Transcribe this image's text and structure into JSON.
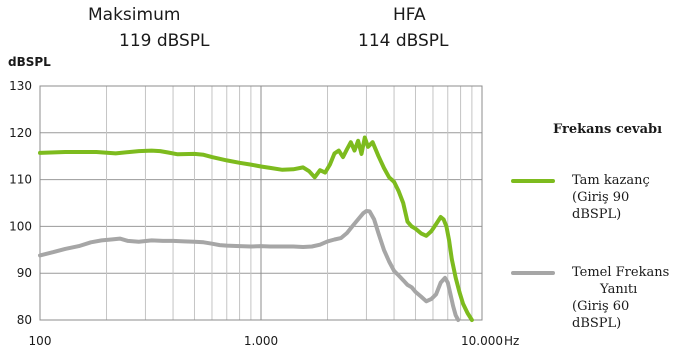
{
  "header": {
    "max_label": "Maksimum",
    "max_value": "119 dBSPL",
    "hfa_label": "HFA",
    "hfa_value": "114 dBSPL"
  },
  "chart_data": {
    "type": "line",
    "ylabel": "dBSPL",
    "xunit": "Hz",
    "xscale": "log",
    "xlim": [
      100,
      10000
    ],
    "ylim": [
      80,
      130
    ],
    "yticks": [
      80,
      90,
      100,
      110,
      120,
      130
    ],
    "xtick_labels": [
      {
        "x": 100,
        "label": "100"
      },
      {
        "x": 1000,
        "label": "1.000"
      },
      {
        "x": 10000,
        "label": "10.000"
      }
    ],
    "grid": true,
    "legend": {
      "title": "Frekans cevabı",
      "placement": "right"
    },
    "series": [
      {
        "name": "Tam kazanç (Giriş 90 dBSPL)",
        "color": "#7dbb1e",
        "x": [
          100,
          130,
          180,
          220,
          280,
          320,
          350,
          380,
          420,
          500,
          550,
          600,
          700,
          800,
          900,
          1000,
          1100,
          1250,
          1400,
          1550,
          1650,
          1750,
          1850,
          1950,
          2050,
          2150,
          2250,
          2350,
          2450,
          2550,
          2650,
          2750,
          2850,
          2950,
          3050,
          3200,
          3400,
          3600,
          3800,
          4000,
          4200,
          4400,
          4600,
          4800,
          5000,
          5300,
          5600,
          5900,
          6200,
          6500,
          6700,
          6900,
          7100,
          7300,
          7600,
          7900,
          8200,
          8600,
          9000
        ],
        "y": [
          115.7,
          115.9,
          115.9,
          115.6,
          116.1,
          116.2,
          116.1,
          115.8,
          115.4,
          115.5,
          115.3,
          114.8,
          114.1,
          113.6,
          113.2,
          112.8,
          112.5,
          112.1,
          112.2,
          112.6,
          111.8,
          110.5,
          112,
          111.5,
          113.2,
          115.6,
          116.2,
          114.8,
          116.5,
          118,
          116.2,
          118.3,
          115.5,
          119,
          117,
          118,
          115,
          112.5,
          110.5,
          109.5,
          107.5,
          105,
          101,
          100,
          99.5,
          98.5,
          98,
          99,
          100.5,
          102,
          101.5,
          100,
          97,
          93,
          89,
          86,
          83.5,
          81.5,
          80
        ]
      },
      {
        "name": "Temel Frekans Yanıtı (Giriş 60 dBSPL)",
        "color": "#a6a6a6",
        "x": [
          100,
          115,
          130,
          150,
          170,
          190,
          210,
          230,
          250,
          280,
          320,
          360,
          400,
          450,
          500,
          550,
          600,
          650,
          700,
          800,
          900,
          1000,
          1100,
          1250,
          1400,
          1550,
          1700,
          1850,
          2000,
          2150,
          2300,
          2450,
          2600,
          2750,
          2900,
          3000,
          3100,
          3250,
          3400,
          3600,
          3800,
          4000,
          4200,
          4400,
          4600,
          4800,
          5000,
          5300,
          5600,
          5900,
          6200,
          6500,
          6800,
          7000,
          7200,
          7400,
          7600,
          7800
        ],
        "y": [
          93.8,
          94.5,
          95.2,
          95.8,
          96.6,
          97,
          97.2,
          97.4,
          96.9,
          96.7,
          97,
          96.9,
          96.9,
          96.8,
          96.7,
          96.6,
          96.3,
          96,
          95.9,
          95.8,
          95.7,
          95.8,
          95.7,
          95.7,
          95.7,
          95.6,
          95.7,
          96.1,
          96.8,
          97.2,
          97.5,
          98.6,
          100.1,
          101.5,
          102.8,
          103.3,
          103.2,
          101.5,
          98.5,
          95,
          92.5,
          90.5,
          89.5,
          88.5,
          87.5,
          87,
          86,
          85,
          84,
          84.5,
          85.5,
          88,
          89,
          88,
          85.5,
          83,
          81,
          80
        ]
      }
    ]
  },
  "legend_items": {
    "full_gain_line1": "Tam kazanç",
    "full_gain_line2": "(Giriş 90 dBSPL)",
    "basic_line1": "Temel Frekans",
    "basic_line2": "Yanıtı",
    "basic_line3": "(Giriş 60 dBSPL)"
  }
}
